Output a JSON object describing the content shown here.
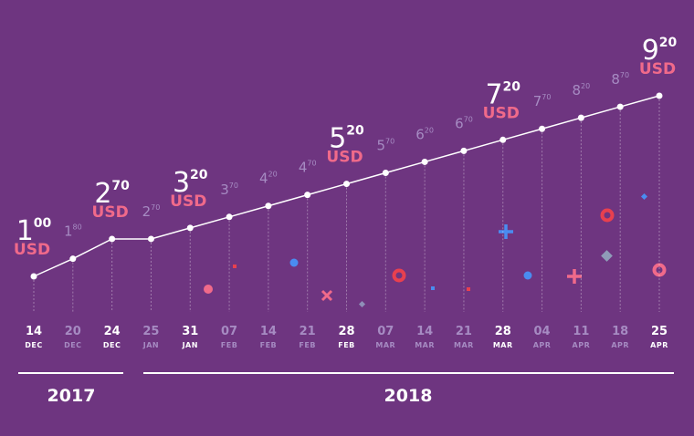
{
  "chart_data": {
    "type": "line",
    "x": [
      [
        "14",
        "DEC"
      ],
      [
        "20",
        "DEC"
      ],
      [
        "24",
        "DEC"
      ],
      [
        "25",
        "JAN"
      ],
      [
        "31",
        "JAN"
      ],
      [
        "07",
        "FEB"
      ],
      [
        "14",
        "FEB"
      ],
      [
        "21",
        "FEB"
      ],
      [
        "28",
        "FEB"
      ],
      [
        "07",
        "MAR"
      ],
      [
        "14",
        "MAR"
      ],
      [
        "21",
        "MAR"
      ],
      [
        "28",
        "MAR"
      ],
      [
        "04",
        "APR"
      ],
      [
        "11",
        "APR"
      ],
      [
        "18",
        "APR"
      ],
      [
        "25",
        "APR"
      ]
    ],
    "values": [
      1.0,
      1.8,
      2.7,
      2.7,
      3.2,
      3.7,
      4.2,
      4.7,
      5.2,
      5.7,
      6.2,
      6.7,
      7.2,
      7.7,
      8.2,
      8.7,
      9.2
    ],
    "value_labels": [
      [
        "1",
        "00"
      ],
      [
        "1",
        "80"
      ],
      [
        "2",
        "70"
      ],
      [
        "2",
        "70"
      ],
      [
        "3",
        "20"
      ],
      [
        "3",
        "70"
      ],
      [
        "4",
        "20"
      ],
      [
        "4",
        "70"
      ],
      [
        "5",
        "20"
      ],
      [
        "5",
        "70"
      ],
      [
        "6",
        "20"
      ],
      [
        "6",
        "70"
      ],
      [
        "7",
        "20"
      ],
      [
        "7",
        "70"
      ],
      [
        "8",
        "20"
      ],
      [
        "8",
        "70"
      ],
      [
        "9",
        "20"
      ]
    ],
    "currency": "USD",
    "highlighted": [
      0,
      2,
      4,
      8,
      12,
      16
    ],
    "color": "#ffffff",
    "currency_color": "#f06a8a",
    "muted_color": "#a68bc2",
    "years": [
      "2017",
      "2018"
    ]
  }
}
